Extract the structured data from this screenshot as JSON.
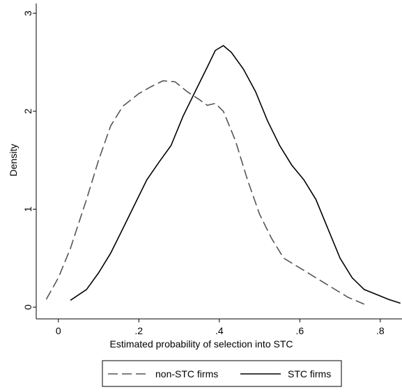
{
  "chart_data": {
    "type": "line",
    "x_label": "Estimated probability of selection into STC",
    "y_label": "Density",
    "xlim": [
      -0.055,
      0.854
    ],
    "ylim": [
      -0.12,
      3.1
    ],
    "xticks": [
      0,
      {
        "value": 0.2,
        "label": ".2"
      },
      {
        "value": 0.4,
        "label": ".4"
      },
      {
        "value": 0.6,
        "label": ".6"
      },
      {
        "value": 0.8,
        "label": ".8"
      }
    ],
    "yticks": [
      0,
      1,
      2,
      3
    ],
    "grid": false,
    "legend": "bottom",
    "series": [
      {
        "name": "non-STC firms",
        "color": "#555555",
        "dash": true,
        "x": [
          -0.03,
          0.0,
          0.03,
          0.07,
          0.1,
          0.13,
          0.16,
          0.2,
          0.23,
          0.26,
          0.29,
          0.32,
          0.35,
          0.37,
          0.39,
          0.41,
          0.44,
          0.47,
          0.5,
          0.53,
          0.56,
          0.6,
          0.64,
          0.68,
          0.72,
          0.76
        ],
        "values": [
          0.08,
          0.3,
          0.6,
          1.1,
          1.5,
          1.85,
          2.05,
          2.18,
          2.25,
          2.31,
          2.3,
          2.2,
          2.12,
          2.06,
          2.08,
          2.0,
          1.7,
          1.3,
          0.95,
          0.7,
          0.5,
          0.4,
          0.3,
          0.2,
          0.1,
          0.03
        ]
      },
      {
        "name": "STC firms",
        "color": "#000000",
        "dash": false,
        "x": [
          0.03,
          0.07,
          0.1,
          0.13,
          0.16,
          0.19,
          0.22,
          0.25,
          0.28,
          0.31,
          0.34,
          0.37,
          0.39,
          0.41,
          0.43,
          0.46,
          0.49,
          0.52,
          0.55,
          0.58,
          0.61,
          0.64,
          0.67,
          0.7,
          0.73,
          0.76,
          0.79,
          0.82,
          0.85
        ],
        "values": [
          0.07,
          0.18,
          0.35,
          0.55,
          0.8,
          1.05,
          1.3,
          1.48,
          1.65,
          1.95,
          2.2,
          2.45,
          2.62,
          2.67,
          2.6,
          2.43,
          2.2,
          1.9,
          1.65,
          1.45,
          1.3,
          1.1,
          0.8,
          0.5,
          0.3,
          0.18,
          0.13,
          0.08,
          0.04
        ]
      }
    ]
  }
}
